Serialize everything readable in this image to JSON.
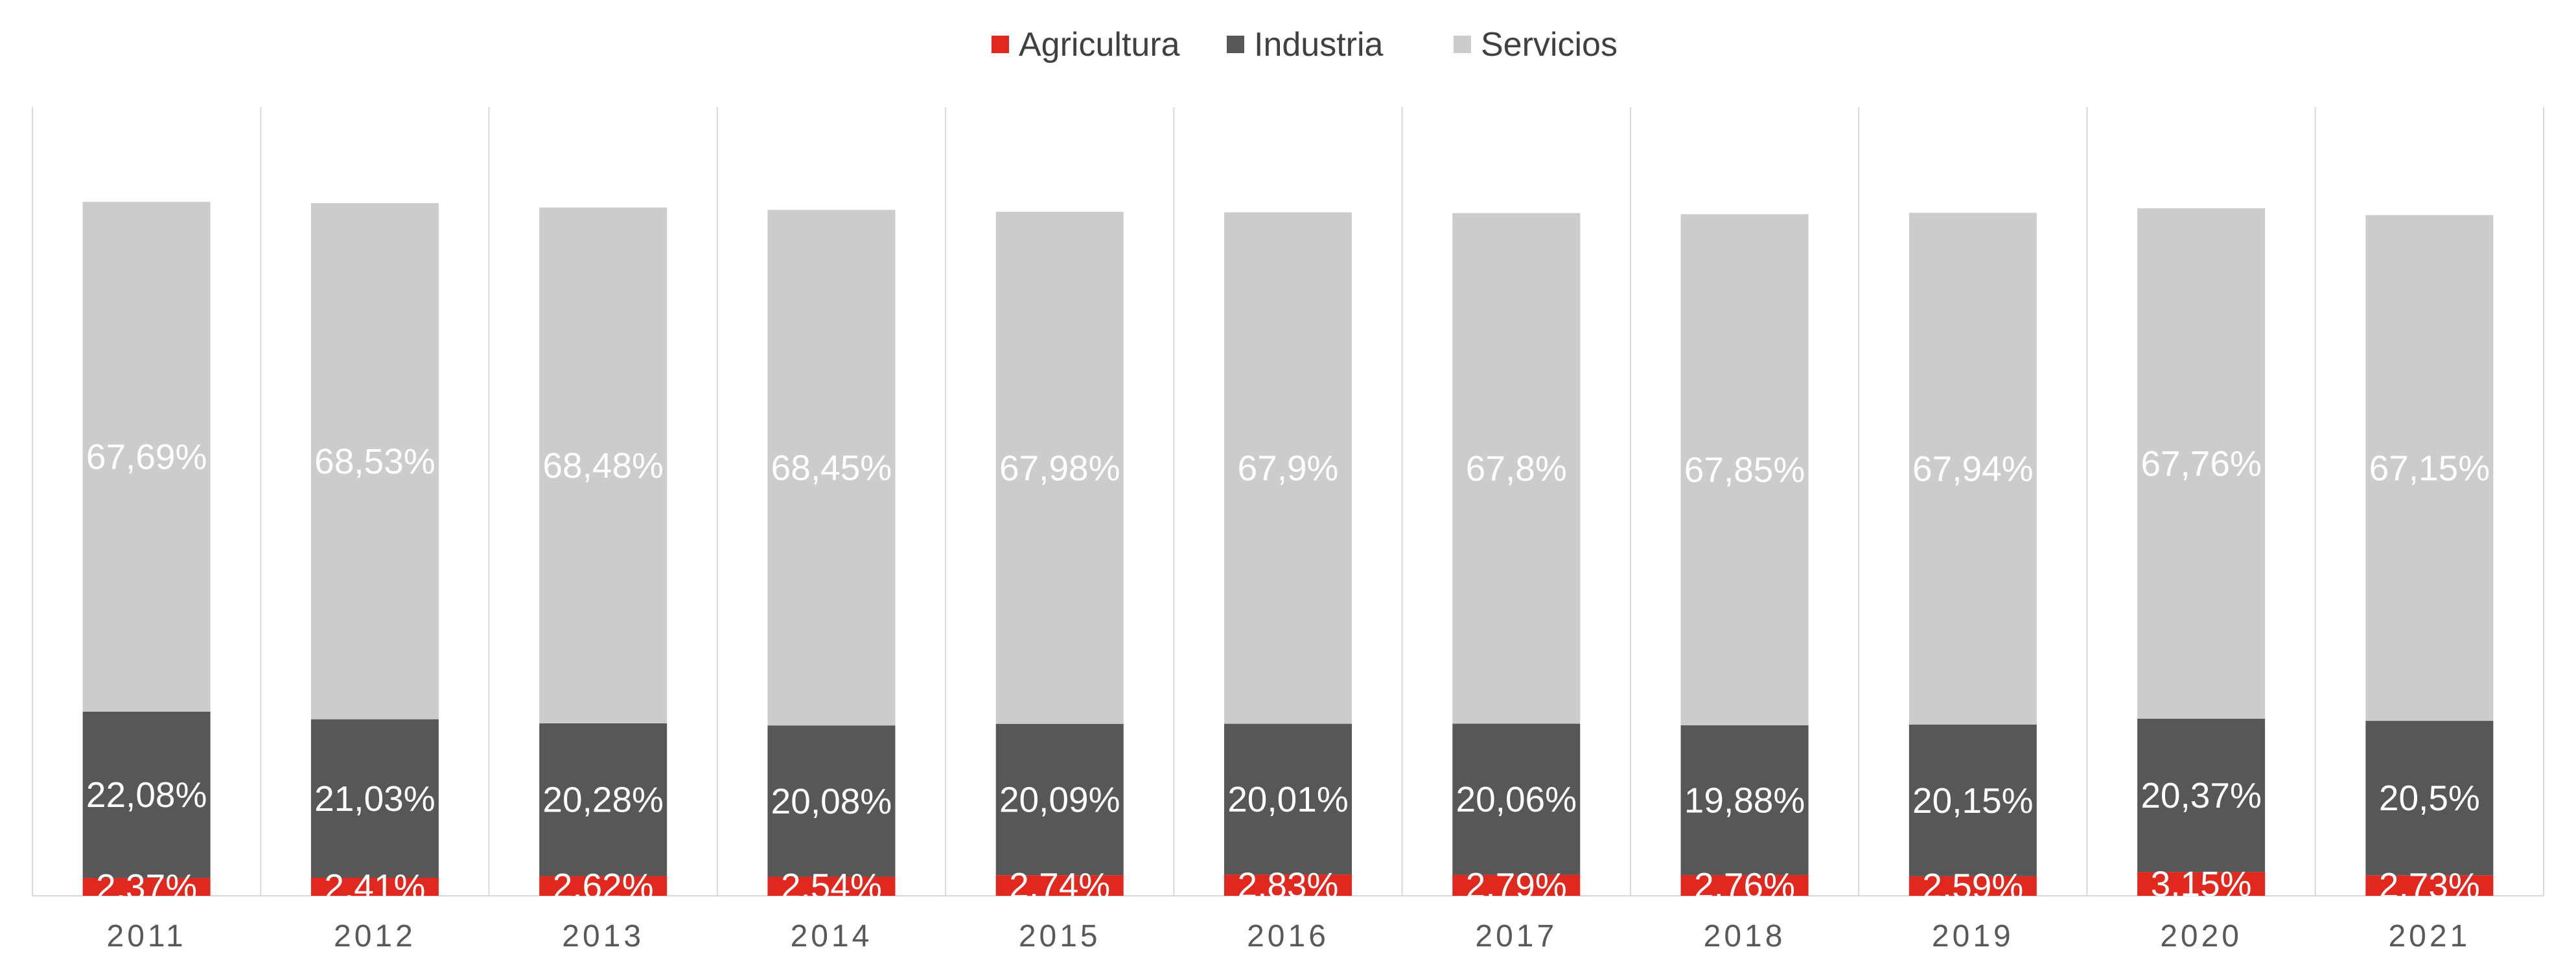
{
  "chart_data": {
    "type": "bar",
    "stacked": true,
    "categories": [
      "2011",
      "2012",
      "2013",
      "2014",
      "2015",
      "2016",
      "2017",
      "2018",
      "2019",
      "2020",
      "2021"
    ],
    "series": [
      {
        "name": "Agricultura",
        "color": "#e0281e",
        "values": [
          2.37,
          2.41,
          2.62,
          2.54,
          2.74,
          2.83,
          2.79,
          2.76,
          2.59,
          3.15,
          2.73
        ],
        "labels": [
          "2,37%",
          "2,41%",
          "2,62%",
          "2,54%",
          "2,74%",
          "2,83%",
          "2,79%",
          "2,76%",
          "2,59%",
          "3,15%",
          "2,73%"
        ]
      },
      {
        "name": "Industria",
        "color": "#575757",
        "values": [
          22.08,
          21.03,
          20.28,
          20.08,
          20.09,
          20.01,
          20.06,
          19.88,
          20.15,
          20.37,
          20.5
        ],
        "labels": [
          "22,08%",
          "21,03%",
          "20,28%",
          "20,08%",
          "20,09%",
          "20,01%",
          "20,06%",
          "19,88%",
          "20,15%",
          "20,37%",
          "20,5%"
        ]
      },
      {
        "name": "Servicios",
        "color": "#cccccc",
        "values": [
          67.69,
          68.53,
          68.48,
          68.45,
          67.98,
          67.9,
          67.8,
          67.85,
          67.94,
          67.76,
          67.15
        ],
        "labels": [
          "67,69%",
          "68,53%",
          "68,48%",
          "68,45%",
          "67,98%",
          "67,9%",
          "67,8%",
          "67,85%",
          "67,94%",
          "67,76%",
          "67,15%"
        ]
      }
    ],
    "legend_position": "top",
    "grid": "vertical category separators",
    "ylim": [
      0,
      100
    ]
  }
}
